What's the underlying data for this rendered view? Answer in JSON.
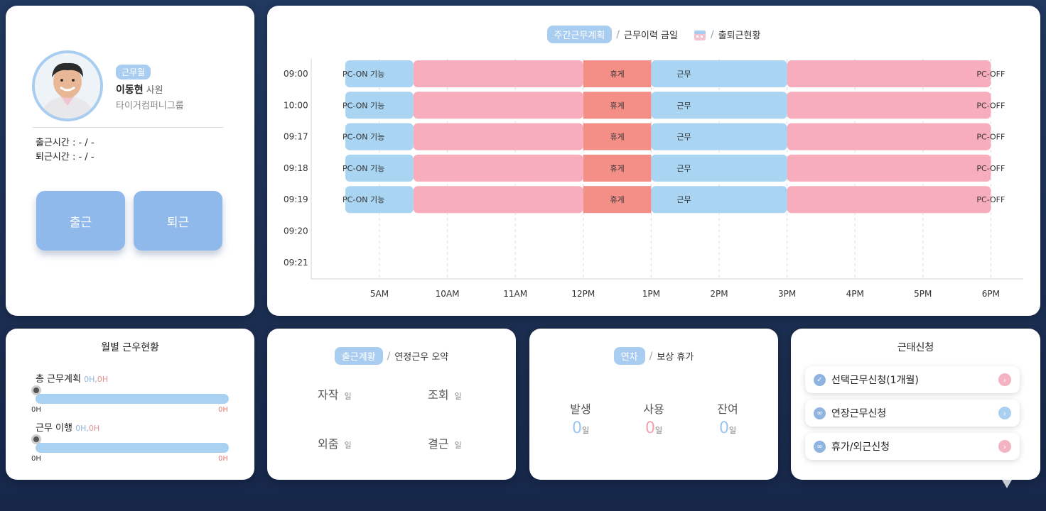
{
  "profile": {
    "badge": "근무월",
    "name": "이동현",
    "rank": "사원",
    "company": "타이거컴퍼니그룹",
    "checkin_label": "출근시간 : - / -",
    "checkout_label": "퇴근시간 : - / -",
    "checkin_button": "출근",
    "checkout_button": "퇴근"
  },
  "schedule": {
    "tabs": [
      "주간근무계획",
      "근무이력 금일",
      "출퇴근현황"
    ],
    "active_tab": "주간근무계획",
    "row_labels": [
      "09:00",
      "10:00",
      "09:17",
      "09:18",
      "09:19",
      "09:20",
      "09:21"
    ],
    "x_ticks": [
      "5AM",
      "10AM",
      "11AM",
      "12PM",
      "1PM",
      "2PM",
      "3PM",
      "4PM",
      "5PM",
      "6PM"
    ],
    "segments": [
      {
        "label": "PC-ON 기능",
        "start": 0,
        "end": 0.5,
        "kind": "pcon"
      },
      {
        "label": "",
        "start": 0.5,
        "end": 3.0,
        "kind": "pink"
      },
      {
        "label": "휴게",
        "start": 3.0,
        "end": 4.0,
        "kind": "rest"
      },
      {
        "label": "근무",
        "start": 4.0,
        "end": 6.0,
        "kind": "work"
      },
      {
        "label": "PC-OFF",
        "start": 6.0,
        "end": 9.0,
        "kind": "pink"
      }
    ],
    "filled_rows": 5,
    "colors": {
      "pcon": "#a9d4f2",
      "pink": "#f7adbb",
      "rest": "#f48f87",
      "work": "#a9d4f2"
    }
  },
  "monthly": {
    "title": "월별 근우현황",
    "rows": [
      {
        "label": "총 근무계획",
        "v1": "0H,",
        "v2": "0H",
        "min": "0H",
        "max": "0H"
      },
      {
        "label": "근무 이행",
        "v1": "0H,",
        "v2": "0H",
        "min": "0H",
        "max": "0H"
      }
    ]
  },
  "summary": {
    "tabs": [
      "출근계황",
      "연정근우 오약"
    ],
    "items": [
      {
        "label": "자작",
        "unit": "일"
      },
      {
        "label": "조회",
        "unit": "일"
      },
      {
        "label": "외줌",
        "unit": "일"
      },
      {
        "label": "결근",
        "unit": "일"
      }
    ]
  },
  "leave": {
    "tabs": [
      "연차",
      "보상 휴가"
    ],
    "cols": [
      {
        "label": "발생",
        "value": "0",
        "unit": "일",
        "color": "#9cc6ee"
      },
      {
        "label": "사용",
        "value": "0",
        "unit": "일",
        "color": "#f2a3b0"
      },
      {
        "label": "잔여",
        "value": "0",
        "unit": "일",
        "color": "#9cc6ee"
      }
    ]
  },
  "request": {
    "title": "근태신청",
    "items": [
      {
        "label": "선택근무신청(1개월)",
        "icon": "check-icon",
        "arrow_color": "#f4b3c2"
      },
      {
        "label": "연장근무신청",
        "icon": "link-icon",
        "arrow_color": "#a9d0f0"
      },
      {
        "label": "휴가/외근신청",
        "icon": "link-icon",
        "arrow_color": "#f4b3c2"
      }
    ]
  }
}
